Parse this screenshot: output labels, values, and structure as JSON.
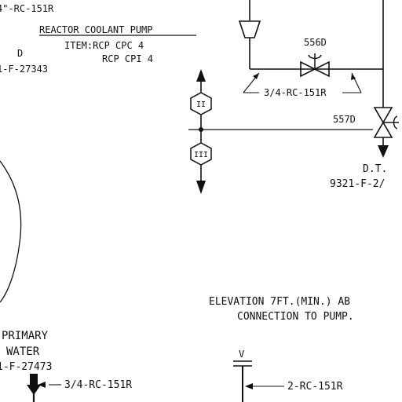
{
  "top_left_line": "4\"-RC-151R",
  "pump": {
    "title": "REACTOR COOLANT PUMP",
    "item_line1": "ITEM:RCP CPC 4",
    "item_line2": "RCP CPI 4"
  },
  "ref_left": {
    "letter": "D",
    "drawing": "1-F-27343"
  },
  "valve_556": {
    "tag": "556D",
    "line_spec": "3/4-RC-151R"
  },
  "valve_557": {
    "tag": "557D"
  },
  "drain_tank": {
    "label": "D.T.",
    "drawing": "9321-F-2/"
  },
  "hex_upper": "II",
  "hex_lower": "III",
  "elevation_note": {
    "line1": "ELEVATION 7FT.(MIN.) AB",
    "line2": "CONNECTION TO PUMP."
  },
  "primary_water": {
    "line1": "PRIMARY",
    "line2": "WATER",
    "drawing": "1-F-27473",
    "line_spec": "3/4-RC-151R"
  },
  "vent": {
    "label": "V",
    "line_spec": "2-RC-151R"
  }
}
